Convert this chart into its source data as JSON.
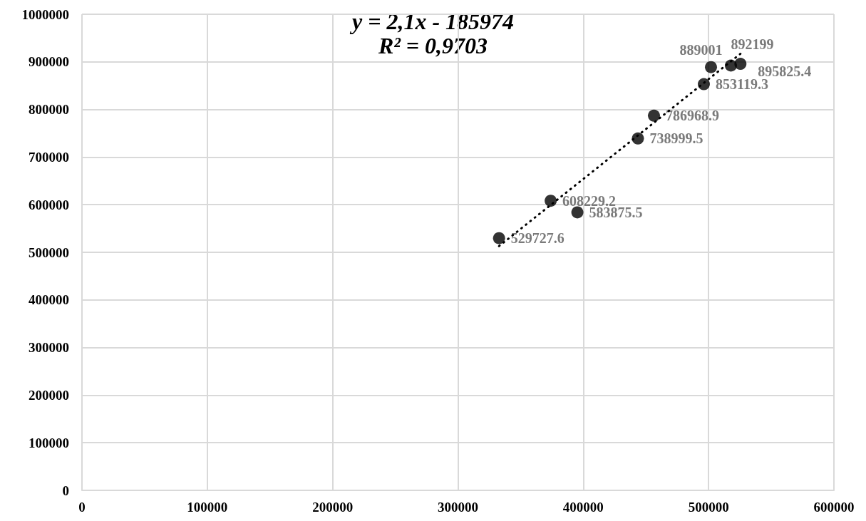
{
  "chart_data": {
    "type": "scatter",
    "x": [
      332800,
      374000,
      395300,
      443600,
      456400,
      496200,
      501900,
      517800,
      525400
    ],
    "series": [
      {
        "color": "#000000",
        "marker": "circle",
        "data_labels": true,
        "values": [
          529727.6,
          608229.2,
          583875.5,
          738999.5,
          786968.9,
          853119.3,
          889001,
          892199,
          895825.4
        ]
      },
      {
        "type": "line",
        "color": "#000000",
        "marker": "none",
        "line_style": "dotted",
        "x": [
          332800,
          525400
        ],
        "values": [
          513000,
          917000
        ]
      }
    ],
    "annotations": [
      "y = 2,1x - 185974",
      "R² = 0,9703"
    ],
    "xlim": [
      0,
      600000
    ],
    "xticks": [
      0,
      100000,
      200000,
      300000,
      400000,
      500000,
      600000
    ],
    "ylim": [
      0,
      1000000
    ],
    "yticks": [
      0,
      100000,
      200000,
      300000,
      400000,
      500000,
      600000,
      700000,
      800000,
      900000,
      1000000
    ],
    "grid": true
  }
}
